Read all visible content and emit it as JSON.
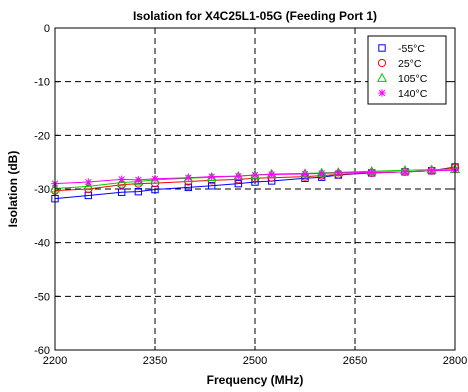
{
  "chart_data": {
    "type": "line",
    "title": "Isolation for X4C25L1-05G (Feeding Port 1)",
    "xlabel": "Frequency (MHz)",
    "ylabel": "Isolation (dB)",
    "xlim": [
      2200,
      2800
    ],
    "ylim": [
      -60,
      0
    ],
    "xticks": [
      2200,
      2350,
      2500,
      2650,
      2800
    ],
    "yticks": [
      0,
      -10,
      -20,
      -30,
      -40,
      -50,
      -60
    ],
    "grid": "dashed",
    "legend_position": "top-right",
    "x": [
      2200,
      2250,
      2300,
      2325,
      2350,
      2400,
      2435,
      2475,
      2500,
      2525,
      2575,
      2600,
      2625,
      2675,
      2725,
      2765,
      2800
    ],
    "series": [
      {
        "name": "-55°C",
        "color": "#0000ff",
        "marker": "square",
        "values": [
          -31.8,
          -31.2,
          -30.6,
          -30.5,
          -30.1,
          -29.7,
          -29.4,
          -29.0,
          -28.7,
          -28.5,
          -28.0,
          -27.8,
          -27.4,
          -27.0,
          -26.8,
          -26.6,
          -25.9
        ]
      },
      {
        "name": "25°C",
        "color": "#ff0000",
        "marker": "circle",
        "values": [
          -30.3,
          -30.0,
          -29.2,
          -29.0,
          -28.9,
          -28.6,
          -28.4,
          -28.2,
          -28.0,
          -27.9,
          -27.7,
          -27.5,
          -27.3,
          -27.0,
          -26.8,
          -26.6,
          -26.0
        ]
      },
      {
        "name": "105°C",
        "color": "#00cc00",
        "marker": "triangle",
        "values": [
          -29.9,
          -29.5,
          -28.8,
          -28.6,
          -28.3,
          -28.0,
          -27.8,
          -27.6,
          -27.4,
          -27.2,
          -27.1,
          -27.0,
          -26.9,
          -26.7,
          -26.5,
          -26.4,
          -26.3
        ]
      },
      {
        "name": "140°C",
        "color": "#ff00ff",
        "marker": "asterisk",
        "values": [
          -29.0,
          -28.7,
          -28.2,
          -28.3,
          -28.1,
          -27.9,
          -27.7,
          -27.6,
          -27.4,
          -27.3,
          -27.2,
          -27.1,
          -27.0,
          -26.9,
          -26.8,
          -26.6,
          -26.5
        ]
      }
    ]
  }
}
